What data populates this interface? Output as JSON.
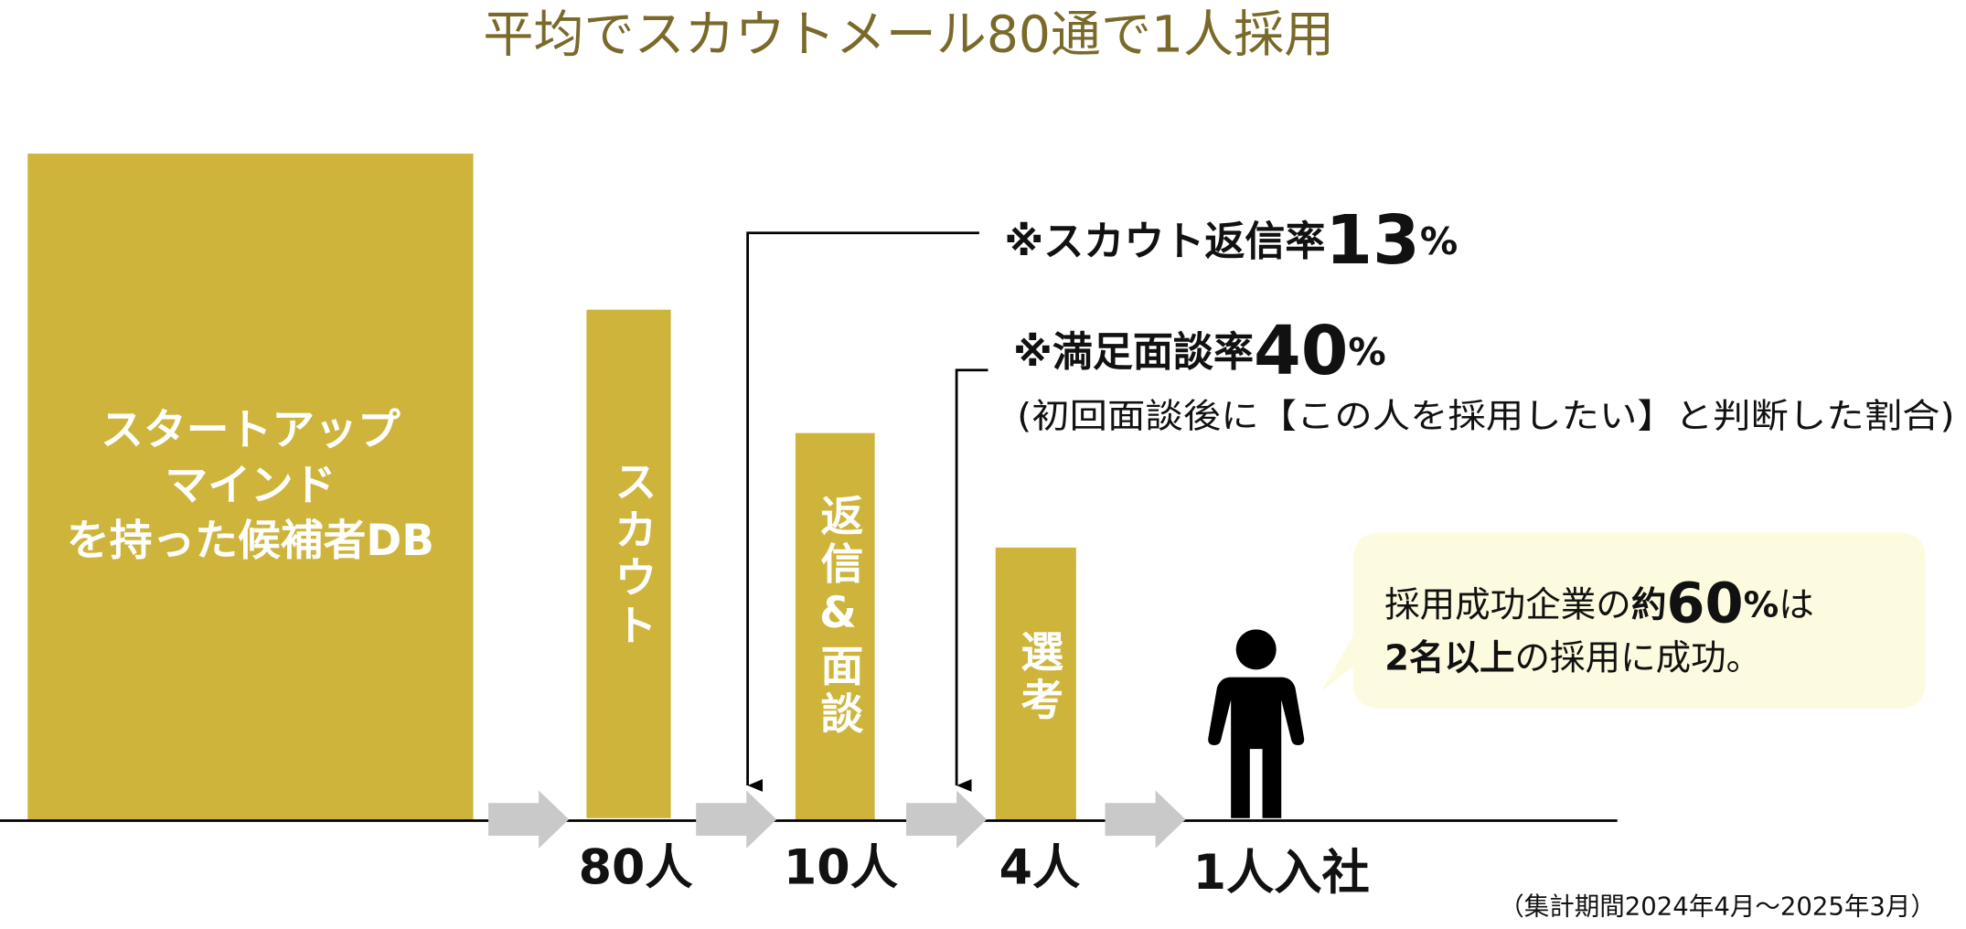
{
  "title": "平均でスカウトメール80通で1人採用",
  "stages": [
    {
      "lines": [
        "スタートアップ",
        "マインド",
        "を持った候補者DB"
      ]
    },
    {
      "label": "スカウト",
      "count": "80人"
    },
    {
      "label": "返信&面談",
      "count": "10人"
    },
    {
      "label": "選考",
      "count": "4人"
    },
    {
      "count": "1人入社"
    }
  ],
  "notes": [
    {
      "prefix": "※スカウト返信率",
      "number": "13",
      "unit": "%"
    },
    {
      "prefix": "※満足面談率",
      "number": "40",
      "unit": "%",
      "detail": "(初回面談後に【この人を採用したい】と判断した割合)"
    }
  ],
  "bubble": {
    "line1": [
      "採用成功企業の",
      "約",
      "60",
      "%",
      "は"
    ],
    "line2": [
      "2名以上",
      "の採用に成功。"
    ]
  },
  "footnote": "（集計期間2024年4月〜2025年3月）"
}
